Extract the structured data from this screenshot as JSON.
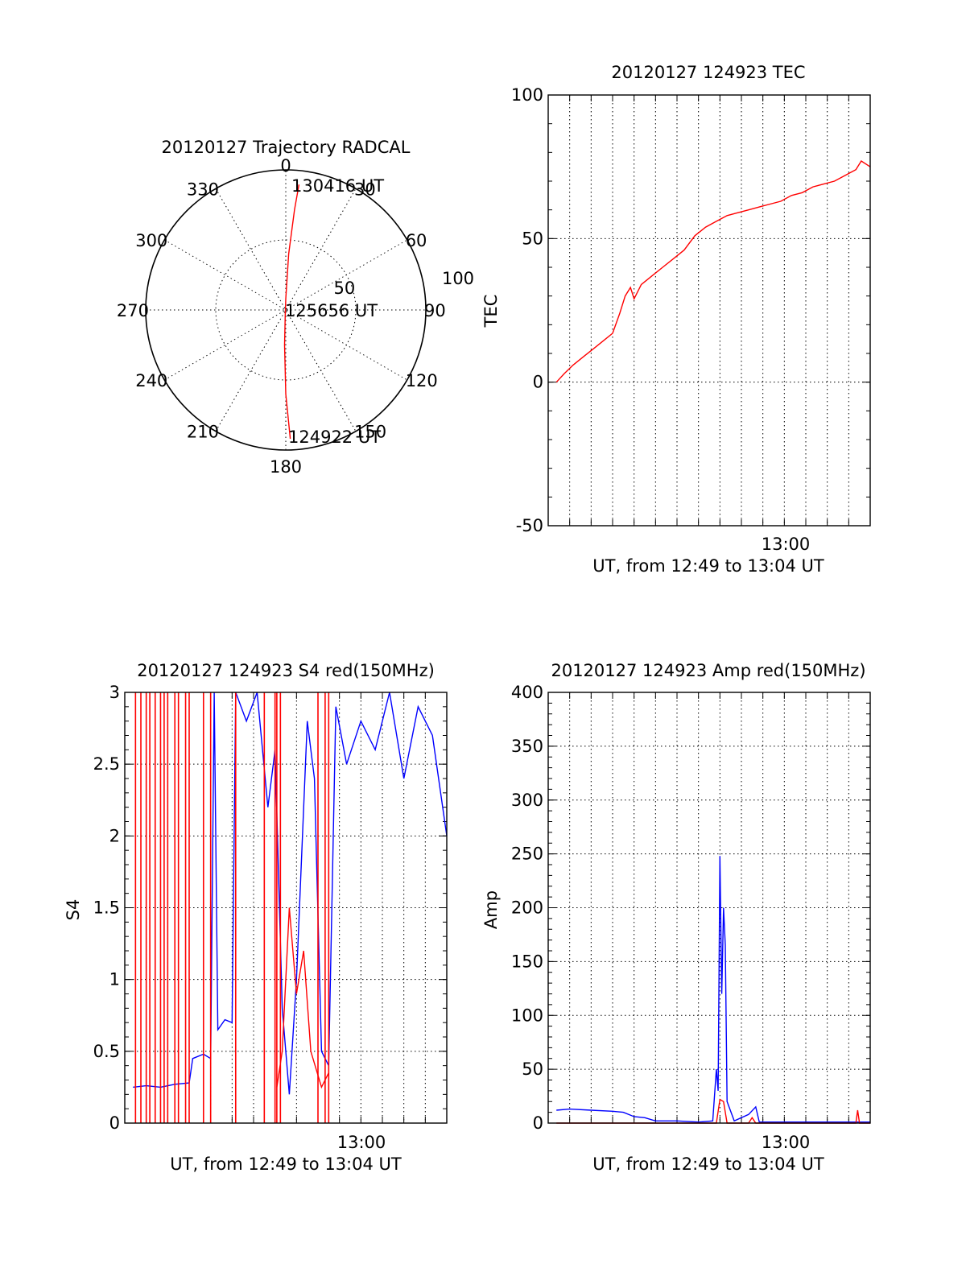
{
  "chart_data": [
    {
      "type": "polar",
      "title": "20120127 Trajectory RADCAL",
      "angle_labels": [
        "0",
        "30",
        "60",
        "90",
        "120",
        "150",
        "180",
        "210",
        "240",
        "270",
        "300",
        "330"
      ],
      "radial_labels": [
        "50",
        "100"
      ],
      "rmax": 100,
      "annotations": [
        "130416 UT",
        "125656 UT",
        "124922 UT"
      ],
      "trajectory": [
        [
          178,
          92
        ],
        [
          180,
          60
        ],
        [
          182,
          25
        ],
        [
          186,
          4
        ],
        [
          0,
          8
        ],
        [
          3,
          40
        ],
        [
          5,
          72
        ],
        [
          6,
          90
        ]
      ],
      "series_colors": [
        "#ff0000"
      ]
    },
    {
      "type": "line",
      "title": "20120127 124923 TEC",
      "ylabel": "TEC",
      "xlabel": "UT, from 12:49 to 13:04 UT",
      "xtick_labels": [
        "13:00"
      ],
      "yticks": [
        "-50",
        "0",
        "50",
        "100"
      ],
      "ylim": [
        -50,
        100
      ],
      "xlim": [
        "12:49",
        "13:04"
      ],
      "series": [
        {
          "color": "#ff0000",
          "points": [
            [
              "12:49:23",
              0
            ],
            [
              "12:49:45",
              3
            ],
            [
              "12:50:10",
              6
            ],
            [
              "12:50:40",
              9
            ],
            [
              "12:51:10",
              12
            ],
            [
              "12:51:40",
              15
            ],
            [
              "12:52:00",
              17
            ],
            [
              "12:52:20",
              24
            ],
            [
              "12:52:35",
              30
            ],
            [
              "12:52:50",
              33
            ],
            [
              "12:53:00",
              29
            ],
            [
              "12:53:20",
              34
            ],
            [
              "12:53:50",
              37
            ],
            [
              "12:54:20",
              40
            ],
            [
              "12:54:50",
              43
            ],
            [
              "12:55:20",
              46
            ],
            [
              "12:55:50",
              51
            ],
            [
              "12:56:20",
              54
            ],
            [
              "12:56:50",
              56
            ],
            [
              "12:57:20",
              58
            ],
            [
              "12:57:50",
              59
            ],
            [
              "12:58:20",
              60
            ],
            [
              "12:58:50",
              61
            ],
            [
              "12:59:20",
              62
            ],
            [
              "12:59:50",
              63
            ],
            [
              "13:00:20",
              65
            ],
            [
              "13:00:50",
              66
            ],
            [
              "13:01:20",
              68
            ],
            [
              "13:01:50",
              69
            ],
            [
              "13:02:20",
              70
            ],
            [
              "13:02:50",
              72
            ],
            [
              "13:03:20",
              74
            ],
            [
              "13:03:35",
              77
            ],
            [
              "13:04:00",
              75
            ]
          ]
        }
      ],
      "grid": true
    },
    {
      "type": "line",
      "title": "20120127 124923 S4 red(150MHz)",
      "ylabel": "S4",
      "xlabel": "UT, from 12:49 to 13:04 UT",
      "xtick_labels": [
        "13:00"
      ],
      "yticks": [
        "0",
        "0.5",
        "1",
        "1.5",
        "2",
        "2.5",
        "3"
      ],
      "ylim": [
        0,
        3
      ],
      "xlim": [
        "12:49",
        "13:04"
      ],
      "series": [
        {
          "color": "#0000ff",
          "points": [
            [
              "12:49:23",
              0.25
            ],
            [
              "12:50:00",
              0.26
            ],
            [
              "12:50:40",
              0.25
            ],
            [
              "12:51:20",
              0.27
            ],
            [
              "12:52:00",
              0.28
            ],
            [
              "12:52:10",
              0.45
            ],
            [
              "12:52:40",
              0.48
            ],
            [
              "12:53:00",
              0.45
            ],
            [
              "12:53:10",
              3.0
            ],
            [
              "12:53:20",
              0.65
            ],
            [
              "12:53:40",
              0.72
            ],
            [
              "12:54:00",
              0.7
            ],
            [
              "12:54:10",
              3.0
            ],
            [
              "12:54:40",
              2.8
            ],
            [
              "12:55:10",
              3.0
            ],
            [
              "12:55:40",
              2.2
            ],
            [
              "12:56:00",
              2.6
            ],
            [
              "12:56:20",
              0.8
            ],
            [
              "12:56:40",
              0.2
            ],
            [
              "12:57:00",
              1.0
            ],
            [
              "12:57:30",
              2.8
            ],
            [
              "12:57:50",
              2.4
            ],
            [
              "12:58:10",
              0.5
            ],
            [
              "12:58:30",
              0.4
            ],
            [
              "12:58:50",
              2.9
            ],
            [
              "12:59:20",
              2.5
            ],
            [
              "13:00:00",
              2.8
            ],
            [
              "13:00:40",
              2.6
            ],
            [
              "13:01:20",
              3.0
            ],
            [
              "13:02:00",
              2.4
            ],
            [
              "13:02:40",
              2.9
            ],
            [
              "13:03:20",
              2.7
            ],
            [
              "13:04:00",
              2.0
            ]
          ]
        },
        {
          "color": "#ff0000",
          "note_type": "spikes",
          "spike_times": [
            "12:49:30",
            "12:49:45",
            "12:50:00",
            "12:50:10",
            "12:50:25",
            "12:50:40",
            "12:50:50",
            "12:51:00",
            "12:51:20",
            "12:51:30",
            "12:51:50",
            "12:52:00",
            "12:52:40",
            "12:53:00",
            "12:54:10",
            "12:55:30",
            "12:56:00",
            "12:56:05",
            "12:56:15",
            "12:58:00",
            "12:58:20",
            "12:58:30"
          ],
          "points": [
            [
              "12:56:05",
              0.25
            ],
            [
              "12:56:20",
              0.5
            ],
            [
              "12:56:40",
              1.5
            ],
            [
              "12:57:00",
              0.9
            ],
            [
              "12:57:20",
              1.2
            ],
            [
              "12:57:40",
              0.5
            ],
            [
              "12:58:10",
              0.25
            ],
            [
              "12:58:30",
              0.35
            ]
          ]
        }
      ],
      "grid": true
    },
    {
      "type": "line",
      "title": "20120127 124923 Amp red(150MHz)",
      "ylabel": "Amp",
      "xlabel": "UT, from 12:49 to 13:04 UT",
      "xtick_labels": [
        "13:00"
      ],
      "yticks": [
        "0",
        "50",
        "100",
        "150",
        "200",
        "250",
        "300",
        "350",
        "400"
      ],
      "ylim": [
        0,
        400
      ],
      "xlim": [
        "12:49",
        "13:04"
      ],
      "series": [
        {
          "color": "#0000ff",
          "points": [
            [
              "12:49:23",
              12
            ],
            [
              "12:50:00",
              13
            ],
            [
              "12:51:00",
              12
            ],
            [
              "12:52:00",
              11
            ],
            [
              "12:52:30",
              10
            ],
            [
              "12:53:00",
              6
            ],
            [
              "12:53:30",
              5
            ],
            [
              "12:54:00",
              2
            ],
            [
              "12:55:00",
              2
            ],
            [
              "12:56:00",
              1
            ],
            [
              "12:56:40",
              2
            ],
            [
              "12:56:50",
              50
            ],
            [
              "12:56:55",
              30
            ],
            [
              "12:57:00",
              248
            ],
            [
              "12:57:05",
              120
            ],
            [
              "12:57:10",
              200
            ],
            [
              "12:57:15",
              165
            ],
            [
              "12:57:20",
              20
            ],
            [
              "12:57:40",
              2
            ],
            [
              "12:58:20",
              8
            ],
            [
              "12:58:40",
              15
            ],
            [
              "12:58:50",
              1
            ],
            [
              "13:00:00",
              1
            ],
            [
              "13:02:00",
              1
            ],
            [
              "13:04:00",
              1
            ]
          ]
        },
        {
          "color": "#ff0000",
          "points": [
            [
              "12:49:23",
              0
            ],
            [
              "12:56:50",
              0
            ],
            [
              "12:57:00",
              22
            ],
            [
              "12:57:10",
              20
            ],
            [
              "12:57:20",
              0
            ],
            [
              "12:58:20",
              0
            ],
            [
              "12:58:30",
              5
            ],
            [
              "12:58:40",
              0
            ],
            [
              "13:03:20",
              0
            ],
            [
              "13:03:25",
              12
            ],
            [
              "13:03:30",
              0
            ],
            [
              "13:04:00",
              0
            ]
          ]
        }
      ],
      "grid": true
    }
  ]
}
